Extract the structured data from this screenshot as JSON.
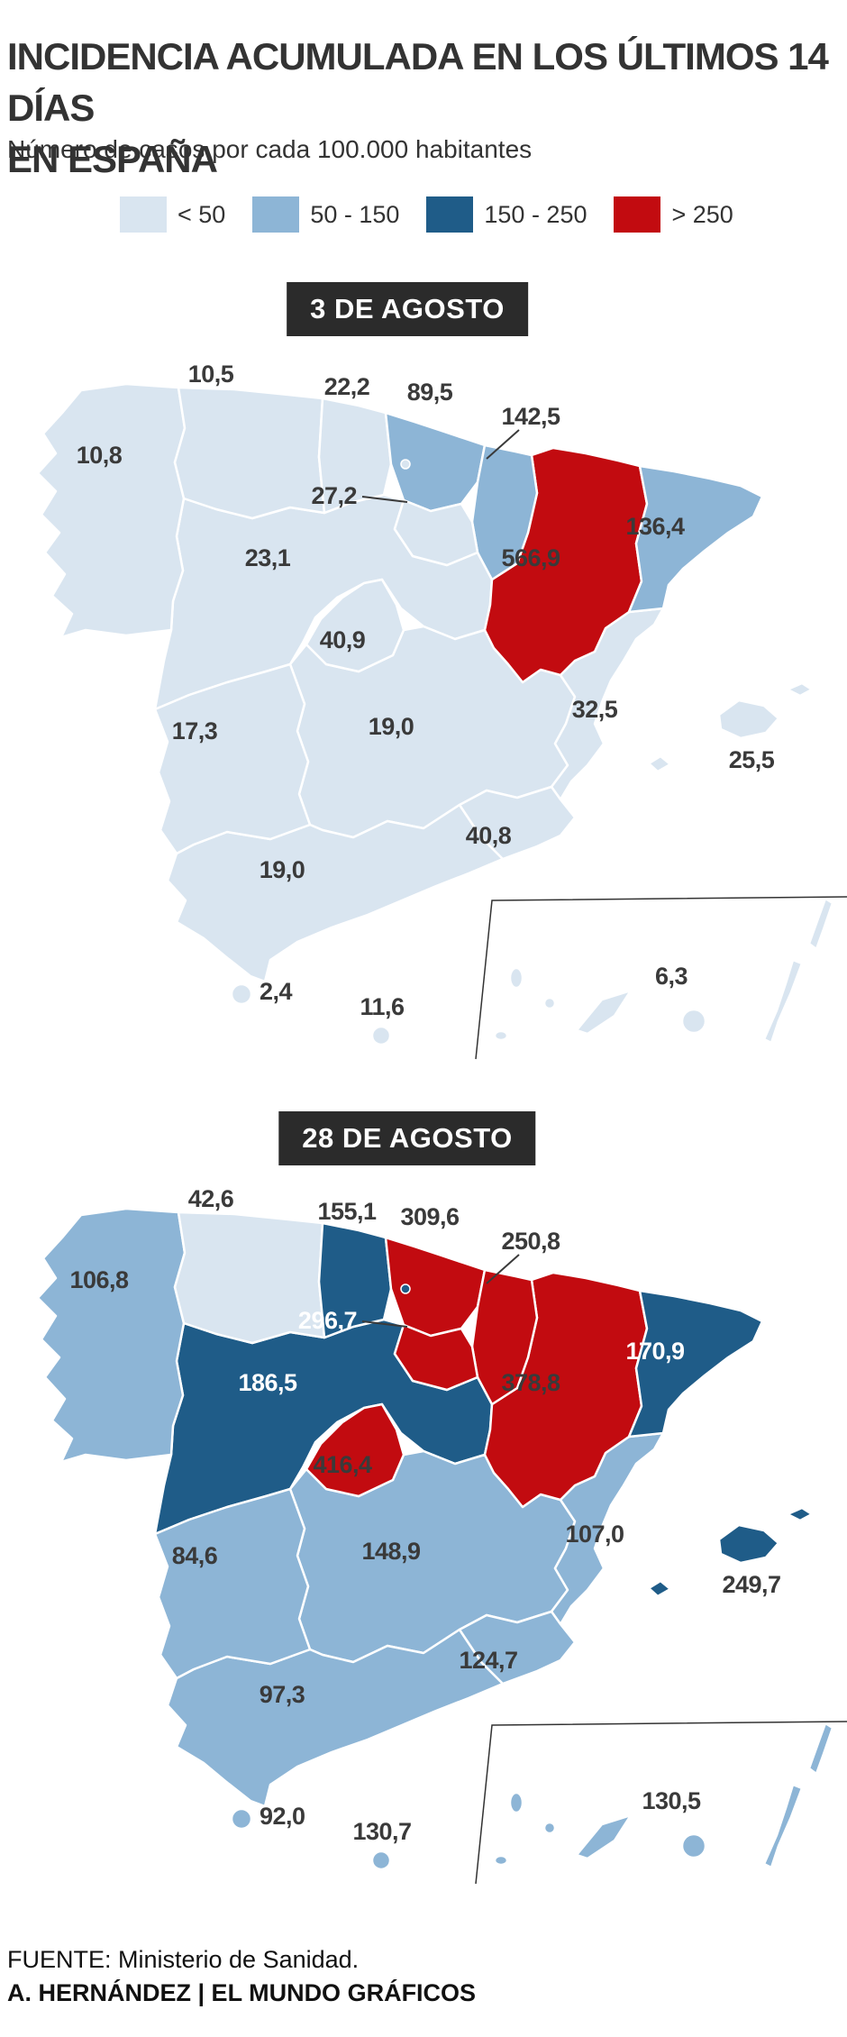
{
  "header": {
    "title_line1": "INCIDENCIA ACUMULADA EN LOS ÚLTIMOS 14 DÍAS",
    "title_line2": "EN ESPAÑA",
    "subtitle": "Número de casos por cada 100.000 habitantes"
  },
  "legend": [
    {
      "key": "lt50",
      "label": "< 50",
      "color": "#d9e5f0"
    },
    {
      "key": "b50_150",
      "label": "50 - 150",
      "color": "#8db5d6"
    },
    {
      "key": "b150_250",
      "label": "150 - 250",
      "color": "#1f5c88"
    },
    {
      "key": "gt250",
      "label": "> 250",
      "color": "#c20b10"
    }
  ],
  "maps": [
    {
      "key": "aug3",
      "badge": "3 DE AGOSTO",
      "white_labels": []
    },
    {
      "key": "aug28",
      "badge": "28 DE AGOSTO",
      "white_labels": [
        "cyl",
        "rioja",
        "cataluna"
      ]
    }
  ],
  "footer": {
    "source": "FUENTE: Ministerio de Sanidad.",
    "credit": "A. HERNÁNDEZ | EL MUNDO GRÁFICOS"
  },
  "colors": {
    "label_dark": "#3a3a3a",
    "label_white": "#ffffff",
    "border": "#ffffff",
    "inset_line": "#333333",
    "callout_line": "#3a3a3a",
    "badge_bg": "#2b2b2b"
  },
  "chart_data": {
    "type": "heatmap",
    "subtype": "choropleth-map-pair",
    "title": "INCIDENCIA ACUMULADA EN LOS ÚLTIMOS 14 DÍAS EN ESPAÑA",
    "unit": "Número de casos por cada 100.000 habitantes",
    "dates": [
      "3 DE AGOSTO",
      "28 DE AGOSTO"
    ],
    "bins": [
      "< 50",
      "50 - 150",
      "150 - 250",
      "> 250"
    ],
    "regions": [
      {
        "id": "galicia",
        "name": "Galicia",
        "values": {
          "aug3": "10,8",
          "aug28": "106,8"
        },
        "values_num": {
          "aug3": 10.8,
          "aug28": 106.8
        },
        "levels": {
          "aug3": "lt50",
          "aug28": "b50_150"
        }
      },
      {
        "id": "asturias",
        "name": "Asturias",
        "values": {
          "aug3": "10,5",
          "aug28": "42,6"
        },
        "values_num": {
          "aug3": 10.5,
          "aug28": 42.6
        },
        "levels": {
          "aug3": "lt50",
          "aug28": "lt50"
        }
      },
      {
        "id": "cantabria",
        "name": "Cantabria",
        "values": {
          "aug3": "22,2",
          "aug28": "155,1"
        },
        "values_num": {
          "aug3": 22.2,
          "aug28": 155.1
        },
        "levels": {
          "aug3": "lt50",
          "aug28": "b150_250"
        }
      },
      {
        "id": "pv",
        "name": "País Vasco",
        "values": {
          "aug3": "89,5",
          "aug28": "309,6"
        },
        "values_num": {
          "aug3": 89.5,
          "aug28": 309.6
        },
        "levels": {
          "aug3": "b50_150",
          "aug28": "gt250"
        }
      },
      {
        "id": "navarra",
        "name": "Navarra",
        "values": {
          "aug3": "142,5",
          "aug28": "250,8"
        },
        "values_num": {
          "aug3": 142.5,
          "aug28": 250.8
        },
        "levels": {
          "aug3": "b50_150",
          "aug28": "gt250"
        }
      },
      {
        "id": "rioja",
        "name": "La Rioja",
        "values": {
          "aug3": "27,2",
          "aug28": "296,7"
        },
        "values_num": {
          "aug3": 27.2,
          "aug28": 296.7
        },
        "levels": {
          "aug3": "lt50",
          "aug28": "gt250"
        }
      },
      {
        "id": "aragon",
        "name": "Aragón",
        "values": {
          "aug3": "566,9",
          "aug28": "378,8"
        },
        "values_num": {
          "aug3": 566.9,
          "aug28": 378.8
        },
        "levels": {
          "aug3": "gt250",
          "aug28": "gt250"
        }
      },
      {
        "id": "cataluna",
        "name": "Cataluña",
        "values": {
          "aug3": "136,4",
          "aug28": "170,9"
        },
        "values_num": {
          "aug3": 136.4,
          "aug28": 170.9
        },
        "levels": {
          "aug3": "b50_150",
          "aug28": "b150_250"
        }
      },
      {
        "id": "cyl",
        "name": "Castilla y León",
        "values": {
          "aug3": "23,1",
          "aug28": "186,5"
        },
        "values_num": {
          "aug3": 23.1,
          "aug28": 186.5
        },
        "levels": {
          "aug3": "lt50",
          "aug28": "b150_250"
        }
      },
      {
        "id": "madrid",
        "name": "Madrid",
        "values": {
          "aug3": "40,9",
          "aug28": "416,4"
        },
        "values_num": {
          "aug3": 40.9,
          "aug28": 416.4
        },
        "levels": {
          "aug3": "lt50",
          "aug28": "gt250"
        }
      },
      {
        "id": "ext",
        "name": "Extremadura",
        "values": {
          "aug3": "17,3",
          "aug28": "84,6"
        },
        "values_num": {
          "aug3": 17.3,
          "aug28": 84.6
        },
        "levels": {
          "aug3": "lt50",
          "aug28": "b50_150"
        }
      },
      {
        "id": "clm",
        "name": "Castilla-La Mancha",
        "values": {
          "aug3": "19,0",
          "aug28": "148,9"
        },
        "values_num": {
          "aug3": 19.0,
          "aug28": 148.9
        },
        "levels": {
          "aug3": "lt50",
          "aug28": "b50_150"
        }
      },
      {
        "id": "valencia",
        "name": "C. Valenciana",
        "values": {
          "aug3": "32,5",
          "aug28": "107,0"
        },
        "values_num": {
          "aug3": 32.5,
          "aug28": 107.0
        },
        "levels": {
          "aug3": "lt50",
          "aug28": "b50_150"
        }
      },
      {
        "id": "baleares",
        "name": "Baleares",
        "values": {
          "aug3": "25,5",
          "aug28": "249,7"
        },
        "values_num": {
          "aug3": 25.5,
          "aug28": 249.7
        },
        "levels": {
          "aug3": "lt50",
          "aug28": "b150_250"
        }
      },
      {
        "id": "murcia",
        "name": "Murcia",
        "values": {
          "aug3": "40,8",
          "aug28": "124,7"
        },
        "values_num": {
          "aug3": 40.8,
          "aug28": 124.7
        },
        "levels": {
          "aug3": "lt50",
          "aug28": "b50_150"
        }
      },
      {
        "id": "andalucia",
        "name": "Andalucía",
        "values": {
          "aug3": "19,0",
          "aug28": "97,3"
        },
        "values_num": {
          "aug3": 19.0,
          "aug28": 97.3
        },
        "levels": {
          "aug3": "lt50",
          "aug28": "b50_150"
        }
      },
      {
        "id": "ceuta",
        "name": "Ceuta",
        "values": {
          "aug3": "2,4",
          "aug28": "92,0"
        },
        "values_num": {
          "aug3": 2.4,
          "aug28": 92.0
        },
        "levels": {
          "aug3": "lt50",
          "aug28": "b50_150"
        }
      },
      {
        "id": "melilla",
        "name": "Melilla",
        "values": {
          "aug3": "11,6",
          "aug28": "130,7"
        },
        "values_num": {
          "aug3": 11.6,
          "aug28": 130.7
        },
        "levels": {
          "aug3": "lt50",
          "aug28": "b50_150"
        }
      },
      {
        "id": "canarias",
        "name": "Canarias",
        "values": {
          "aug3": "6,3",
          "aug28": "130,5"
        },
        "values_num": {
          "aug3": 6.3,
          "aug28": 130.5
        },
        "levels": {
          "aug3": "lt50",
          "aug28": "b50_150"
        }
      }
    ]
  }
}
